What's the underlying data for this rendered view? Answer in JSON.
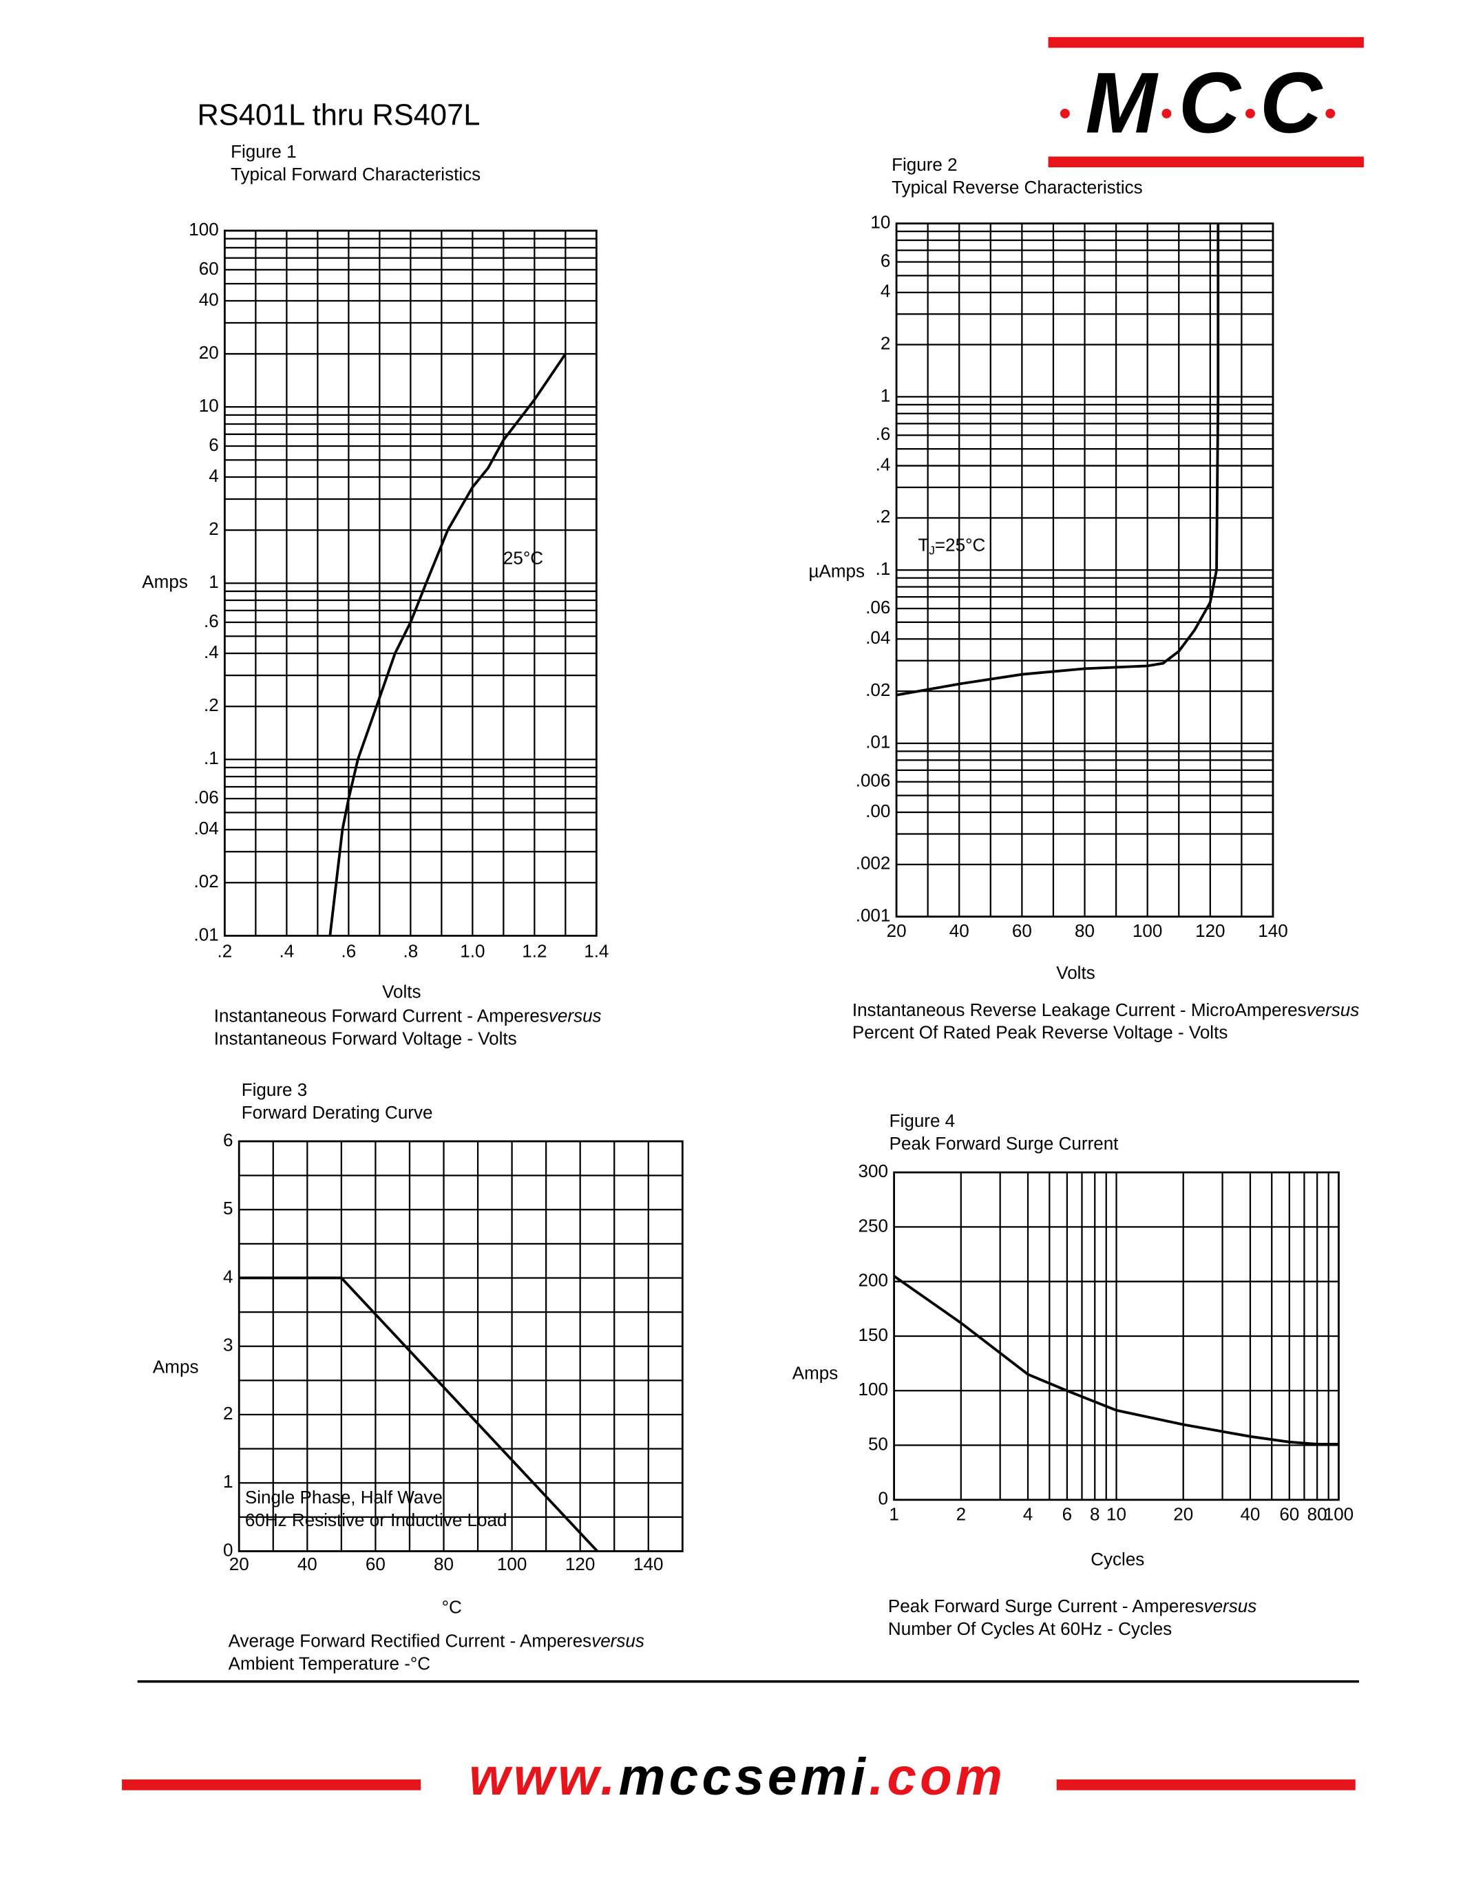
{
  "header": {
    "title": "RS401L thru RS407L",
    "logo": [
      "M",
      "C",
      "C"
    ]
  },
  "footer": {
    "url": [
      "www.",
      "mccsemi",
      ".com"
    ]
  },
  "chart_data": [
    {
      "type": "line",
      "figure": "Figure 1",
      "title": "Typical Forward Characteristics",
      "xlabel": "Volts",
      "ylabel": "Amps",
      "xscale": "linear",
      "yscale": "log",
      "grid": true,
      "xlim": [
        0.2,
        1.4
      ],
      "ylim": [
        0.01,
        100
      ],
      "xticks": [
        {
          "value": 0.2,
          "label": ".2"
        },
        {
          "value": 0.4,
          "label": ".4"
        },
        {
          "value": 0.6,
          "label": ".6"
        },
        {
          "value": 0.8,
          "label": ".8"
        },
        {
          "value": 1,
          "label": "1.0"
        },
        1.2,
        1.4
      ],
      "yticks": [
        100,
        60,
        40,
        20,
        10,
        6,
        4,
        2,
        1,
        {
          "value": 0.6,
          "label": ".6"
        },
        {
          "value": 0.4,
          "label": ".4"
        },
        {
          "value": 0.2,
          "label": ".2"
        },
        {
          "value": 0.1,
          "label": ".1"
        },
        {
          "value": 0.06,
          "label": ".06"
        },
        {
          "value": 0.04,
          "label": ".04"
        },
        {
          "value": 0.02,
          "label": ".02"
        },
        {
          "value": 0.01,
          "label": ".01"
        }
      ],
      "minor_xticks": [
        0.3,
        0.5,
        0.7,
        0.9,
        1.1,
        1.3
      ],
      "minor_yticks": [
        0.03,
        0.05,
        0.07,
        0.08,
        0.09,
        0.3,
        0.5,
        0.7,
        0.8,
        0.9,
        3,
        5,
        7,
        8,
        9,
        30,
        50,
        70,
        80,
        90
      ],
      "series": [
        {
          "color": "#000000",
          "x": [
            0.54,
            0.58,
            0.6,
            0.63,
            0.69,
            0.75,
            0.8,
            0.85,
            0.92,
            1.0,
            1.05,
            1.1,
            1.2,
            1.3
          ],
          "values": [
            0.01,
            0.04,
            0.06,
            0.1,
            0.2,
            0.4,
            0.6,
            1,
            2,
            3.5,
            4.5,
            6.5,
            11,
            20
          ]
        }
      ],
      "annotations": [
        "25°C"
      ],
      "caption": {
        "line1": "Instantaneous Forward Current - Amperes",
        "versus": "versus",
        "line2": "Instantaneous Forward Voltage - Volts"
      }
    },
    {
      "type": "line",
      "figure": "Figure 2",
      "title": "Typical Reverse Characteristics",
      "xlabel": "Volts",
      "ylabel": "µAmps",
      "xscale": "linear",
      "yscale": "log",
      "grid": true,
      "xlim": [
        20,
        140
      ],
      "ylim": [
        0.001,
        10
      ],
      "xticks": [
        20,
        40,
        60,
        80,
        100,
        120,
        140
      ],
      "yticks": [
        10,
        6,
        4,
        2,
        1,
        {
          "value": 0.6,
          "label": ".6"
        },
        {
          "value": 0.4,
          "label": ".4"
        },
        {
          "value": 0.2,
          "label": ".2"
        },
        {
          "value": 0.1,
          "label": ".1"
        },
        {
          "value": 0.06,
          "label": ".06"
        },
        {
          "value": 0.04,
          "label": ".04"
        },
        {
          "value": 0.02,
          "label": ".02"
        },
        {
          "value": 0.01,
          "label": ".01"
        },
        {
          "value": 0.006,
          "label": ".006"
        },
        {
          "value": 0.004,
          "label": ".00"
        },
        {
          "value": 0.002,
          "label": ".002"
        },
        {
          "value": 0.001,
          "label": ".001"
        }
      ],
      "minor_xticks": [
        30,
        50,
        70,
        90,
        110,
        130
      ],
      "minor_yticks": [
        0.003,
        0.005,
        0.007,
        0.008,
        0.009,
        0.03,
        0.05,
        0.07,
        0.08,
        0.09,
        0.3,
        0.5,
        0.7,
        0.8,
        0.9,
        3,
        5,
        7,
        8,
        9
      ],
      "series": [
        {
          "color": "#000000",
          "x": [
            20,
            40,
            60,
            80,
            100,
            105,
            110,
            115,
            120,
            122,
            122.5,
            122.5
          ],
          "values": [
            0.019,
            0.022,
            0.025,
            0.027,
            0.028,
            0.029,
            0.034,
            0.045,
            0.065,
            0.1,
            1,
            10
          ]
        }
      ],
      "annotations": [
        [
          "T",
          "J",
          "=25°C"
        ]
      ],
      "caption": {
        "line1": "Instantaneous Reverse Leakage Current - MicroAmperes",
        "versus": "versus",
        "line2": "Percent Of Rated Peak Reverse Voltage - Volts"
      }
    },
    {
      "type": "line",
      "figure": "Figure 3",
      "title": "Forward Derating Curve",
      "xlabel": "°C",
      "ylabel": "Amps",
      "xscale": "linear",
      "yscale": "linear",
      "grid": true,
      "xlim": [
        20,
        150
      ],
      "ylim": [
        0,
        6
      ],
      "xticks": [
        20,
        40,
        60,
        80,
        100,
        120,
        140
      ],
      "yticks": [
        0,
        1,
        2,
        3,
        4,
        5,
        6
      ],
      "minor_xticks": [
        30,
        50,
        70,
        90,
        110,
        130
      ],
      "minor_yticks": [
        0.5,
        1.5,
        2.5,
        3.5,
        4.5,
        5.5
      ],
      "series": [
        {
          "color": "#000000",
          "x": [
            20,
            50,
            125
          ],
          "values": [
            4,
            4,
            0
          ]
        }
      ],
      "annotations": [
        "Single Phase, Half Wave",
        "60Hz Resistive or Inductive Load"
      ],
      "caption": {
        "line1": "Average Forward Rectified Current  -  Amperes",
        "versus": "versus",
        "line2": "Ambient Temperature  -°C"
      }
    },
    {
      "type": "line",
      "figure": "Figure 4",
      "title": "Peak Forward Surge Current",
      "xlabel": "Cycles",
      "ylabel": "Amps",
      "xscale": "log",
      "yscale": "linear",
      "grid": true,
      "xlim": [
        1,
        100
      ],
      "ylim": [
        0,
        300
      ],
      "xticks": [
        1,
        2,
        4,
        6,
        8,
        10,
        20,
        40,
        60,
        80,
        100
      ],
      "yticks": [
        0,
        50,
        100,
        150,
        200,
        250,
        300
      ],
      "minor_xticks": [
        3,
        5,
        7,
        9,
        30,
        50,
        70,
        90
      ],
      "minor_yticks": [],
      "series": [
        {
          "color": "#000000",
          "x": [
            1,
            2,
            4,
            6,
            10,
            20,
            40,
            60,
            80,
            100
          ],
          "values": [
            205,
            162,
            115,
            100,
            82,
            69,
            58,
            53,
            51,
            51
          ]
        }
      ],
      "annotations": [],
      "caption": {
        "line1": "Peak Forward Surge Current - Amperes",
        "versus": "versus",
        "line2": "Number Of Cycles At 60Hz - Cycles"
      }
    }
  ]
}
